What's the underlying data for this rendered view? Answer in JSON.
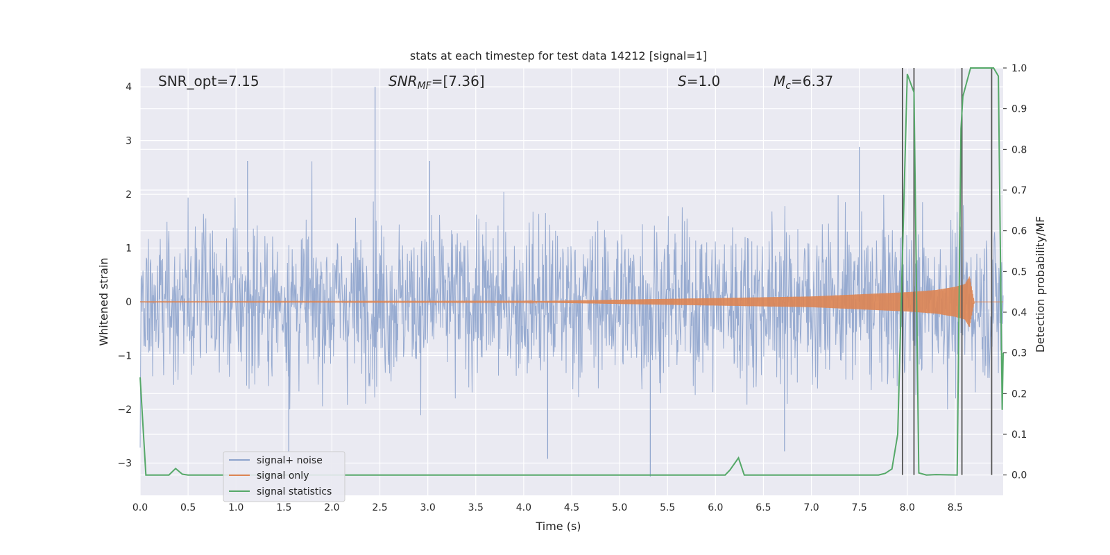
{
  "chart_data": {
    "type": "line",
    "title": "stats at each timestep for test data 14212 [signal=1]",
    "xlabel": "Time (s)",
    "ylabel_left": "Whitened strain",
    "ylabel_right": "Detection probability/MF",
    "xlim": [
      0.0,
      9.0
    ],
    "ylim_left": [
      -3.6,
      4.35
    ],
    "ylim_right": [
      -0.05,
      1.0
    ],
    "xticks": [
      "0.0",
      "0.5",
      "1.0",
      "1.5",
      "2.0",
      "2.5",
      "3.0",
      "3.5",
      "4.0",
      "4.5",
      "5.0",
      "5.5",
      "6.0",
      "6.5",
      "7.0",
      "7.5",
      "8.0",
      "8.5"
    ],
    "yticks_left": [
      "−3",
      "−2",
      "−1",
      "0",
      "1",
      "2",
      "3",
      "4"
    ],
    "yticks_right": [
      "0.0",
      "0.1",
      "0.2",
      "0.3",
      "0.4",
      "0.5",
      "0.6",
      "0.7",
      "0.8",
      "0.9",
      "1.0"
    ],
    "annotations": {
      "snr_opt": "SNR_opt=7.15",
      "snr_mf_base": "SNR",
      "snr_mf_sub": "MF",
      "snr_mf_rest": "=[7.36]",
      "s_base": "S",
      "s_rest": "=1.0",
      "mc_base": "M",
      "mc_sub": "c",
      "mc_rest": "=6.37"
    },
    "legend": {
      "position": "lower-left",
      "entries": [
        "signal+ noise",
        "signal only",
        "signal statistics"
      ]
    },
    "colors": {
      "noise": "#8da3cc",
      "signal": "#dd8452",
      "statistics": "#55a868",
      "vlines": "#555555",
      "background": "#eaeaf2",
      "grid": "#ffffff"
    },
    "series": [
      {
        "name": "signal+ noise",
        "description_range": "whitened strain noise, roughly within [-3.3, 4.0]",
        "notable_peaks": [
          {
            "x": 2.45,
            "y": 4.0
          },
          {
            "x": 1.12,
            "y": 2.62
          },
          {
            "x": 3.02,
            "y": 2.62
          },
          {
            "x": 7.5,
            "y": 2.88
          },
          {
            "x": 5.32,
            "y": -3.25
          },
          {
            "x": 1.55,
            "y": -2.78
          },
          {
            "x": 6.72,
            "y": -2.78
          },
          {
            "x": 4.25,
            "y": -2.92
          }
        ]
      },
      {
        "name": "signal only",
        "description": "chirp waveform growing in amplitude, merger near t=8.65 s",
        "envelope": {
          "x": [
            0.0,
            4.0,
            5.0,
            6.0,
            7.0,
            7.5,
            8.0,
            8.3,
            8.5,
            8.6,
            8.65,
            8.7,
            9.0
          ],
          "amp": [
            0.005,
            0.01,
            0.04,
            0.07,
            0.1,
            0.14,
            0.18,
            0.22,
            0.28,
            0.33,
            0.48,
            0.0,
            0.0
          ]
        }
      },
      {
        "name": "signal statistics",
        "x": [
          0.0,
          0.06,
          0.3,
          0.37,
          0.44,
          0.5,
          6.1,
          6.15,
          6.24,
          6.3,
          7.7,
          7.77,
          7.84,
          7.9,
          8.0,
          8.07,
          8.12,
          8.2,
          8.3,
          8.52,
          8.56,
          8.58,
          8.66,
          8.9,
          8.95,
          8.99,
          9.0
        ],
        "y": [
          0.24,
          0.0,
          0.0,
          0.016,
          0.002,
          0.0,
          0.0,
          0.012,
          0.042,
          0.0,
          0.0,
          0.004,
          0.015,
          0.1,
          0.985,
          0.94,
          0.005,
          0.0,
          0.001,
          0.0,
          0.85,
          0.93,
          1.0,
          1.0,
          0.98,
          0.16,
          0.3
        ]
      }
    ],
    "vertical_lines_x": [
      7.95,
      8.07,
      8.57,
      8.88
    ]
  }
}
